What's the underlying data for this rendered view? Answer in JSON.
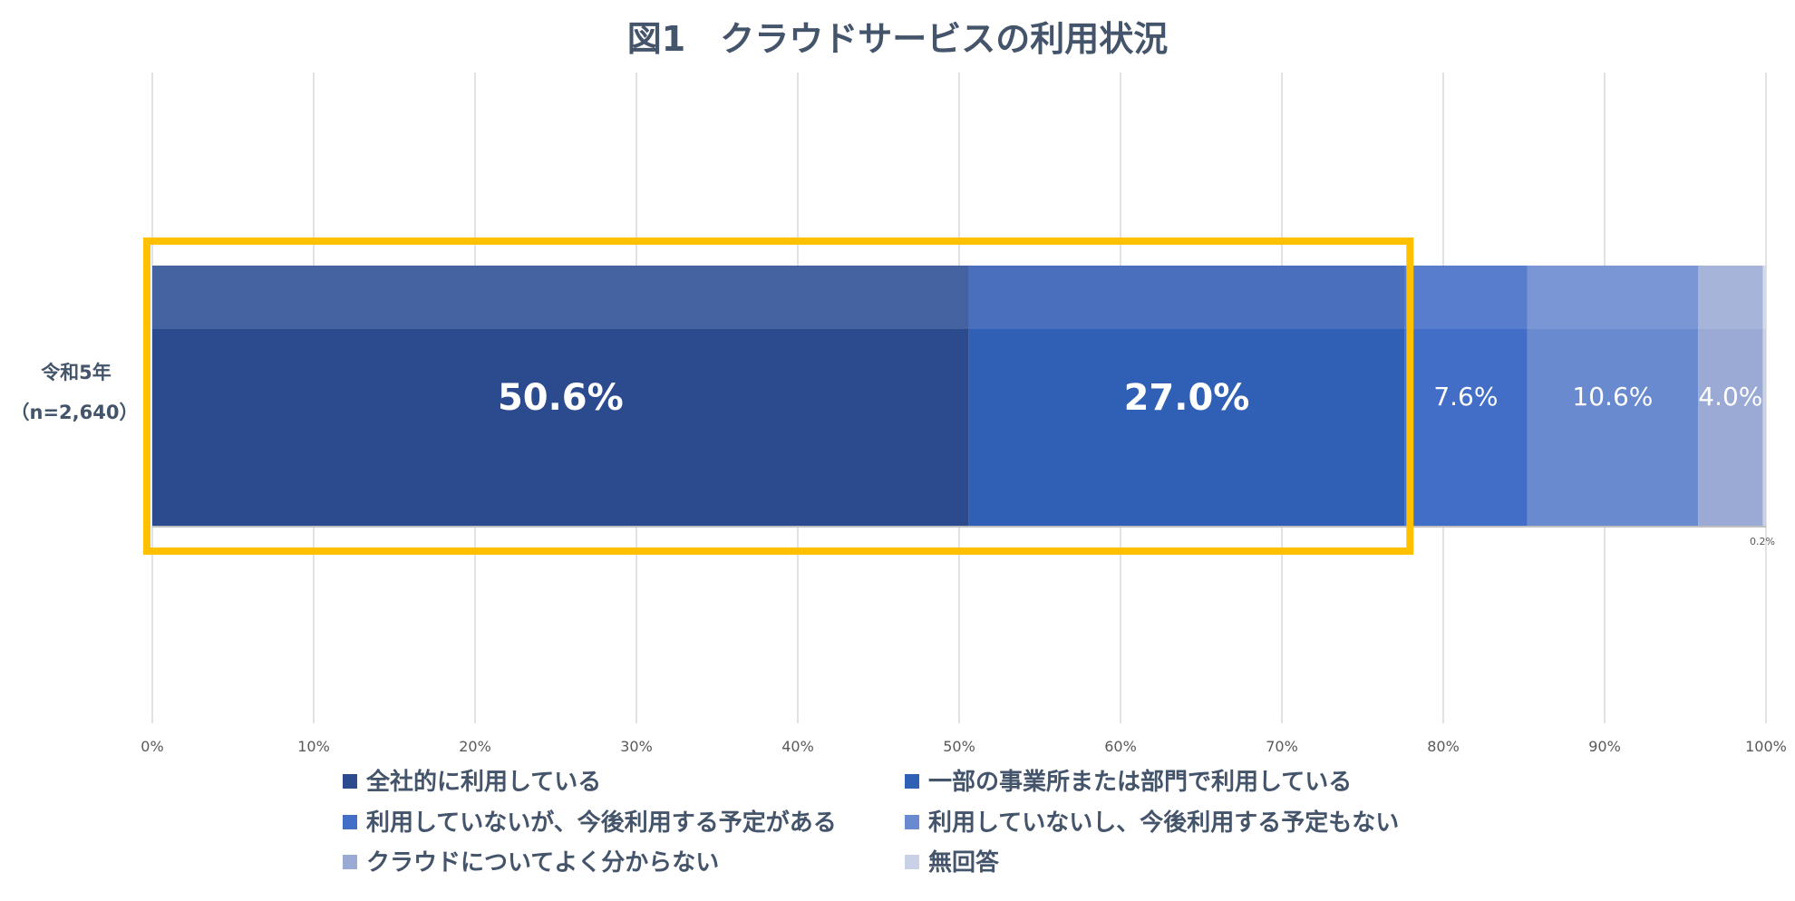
{
  "chart_data": {
    "type": "bar",
    "orientation": "horizontal",
    "stacked": "100%",
    "title": "図1　クラウドサービスの利用状況",
    "category": {
      "line1": "令和5年",
      "line2": "（n=2,640）"
    },
    "xlim": [
      0,
      100
    ],
    "x_ticks": [
      "0%",
      "10%",
      "20%",
      "30%",
      "40%",
      "50%",
      "60%",
      "70%",
      "80%",
      "90%",
      "100%"
    ],
    "grid": "vertical",
    "legend_position": "bottom",
    "highlight": {
      "from_series": 0,
      "to_series": 1,
      "color": "#FFC000"
    },
    "series": [
      {
        "name": "全社的に利用している",
        "value": 50.6,
        "label": "50.6%",
        "color": "#2C4B8E",
        "top_color": "#4A66A4"
      },
      {
        "name": "一部の事業所または部門で利用している",
        "value": 27.0,
        "label": "27.0%",
        "color": "#3060B5",
        "top_color": "#4E72BE"
      },
      {
        "name": "利用していないが、今後利用する予定がある",
        "value": 7.6,
        "label": "7.6%",
        "color": "#426EC8",
        "top_color": "#5A80CC"
      },
      {
        "name": "利用していないし、今後利用する予定もない",
        "value": 10.6,
        "label": "10.6%",
        "color": "#6A8AD0",
        "top_color": "#7C98D6"
      },
      {
        "name": "クラウドについてよく分からない",
        "value": 4.0,
        "label": "4.0%",
        "color": "#9AAAD4",
        "top_color": "#A8B6DA"
      },
      {
        "name": "無回答",
        "value": 0.2,
        "label": "0.2%",
        "color": "#C9D1E6",
        "top_color": "#D4DAEB"
      }
    ]
  }
}
